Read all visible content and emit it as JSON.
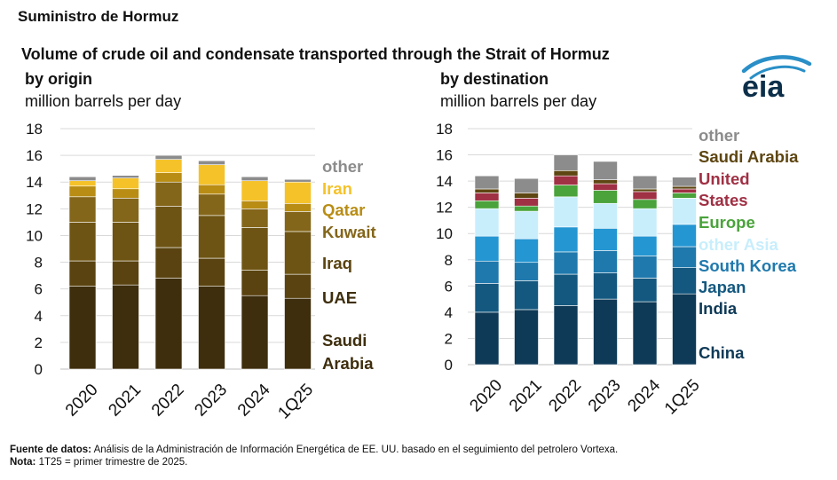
{
  "header": {
    "brand": "Suministro de Hormuz",
    "title": "Volume of crude oil and condensate transported through the Strait of Hormuz"
  },
  "logo": {
    "text": "eia"
  },
  "colors": {
    "origin": {
      "Saudi Arabia": "#3e2e0d",
      "UAE": "#5a4310",
      "Iraq": "#6e5414",
      "Kuwait": "#84661a",
      "Qatar": "#b98d14",
      "Iran": "#f5c22a",
      "other": "#8c8c8c"
    },
    "destination": {
      "China": "#0f3a57",
      "India": "#14587f",
      "Japan": "#1f79ad",
      "South Korea": "#2496d2",
      "other Asia": "#c8eefc",
      "Europe": "#4aa33b",
      "United States": "#a03044",
      "Saudi Arabia": "#5e4612",
      "other": "#8c8c8c"
    }
  },
  "chart_data": [
    {
      "type": "bar",
      "stacked": true,
      "title": "by origin",
      "subtitle": "million barrels per day",
      "categories": [
        "2020",
        "2021",
        "2022",
        "2023",
        "2024",
        "1Q25"
      ],
      "ylim": [
        0,
        18
      ],
      "yticks": [
        0,
        2,
        4,
        6,
        8,
        10,
        12,
        14,
        16,
        18
      ],
      "grid": true,
      "series": [
        {
          "name": "Saudi Arabia",
          "label": "Saudi\nArabia",
          "values": [
            6.2,
            6.3,
            6.8,
            6.2,
            5.5,
            5.3
          ]
        },
        {
          "name": "UAE",
          "label": "UAE",
          "values": [
            1.9,
            1.8,
            2.3,
            2.1,
            1.9,
            1.8
          ]
        },
        {
          "name": "Iraq",
          "label": "Iraq",
          "values": [
            2.9,
            2.9,
            3.1,
            3.2,
            3.2,
            3.2
          ]
        },
        {
          "name": "Kuwait",
          "label": "Kuwait",
          "values": [
            1.9,
            1.8,
            1.8,
            1.6,
            1.4,
            1.5
          ]
        },
        {
          "name": "Qatar",
          "label": "Qatar",
          "values": [
            0.8,
            0.7,
            0.7,
            0.7,
            0.6,
            0.6
          ]
        },
        {
          "name": "Iran",
          "label": "Iran",
          "values": [
            0.4,
            0.8,
            1.0,
            1.5,
            1.5,
            1.6
          ]
        },
        {
          "name": "other",
          "label": "other",
          "values": [
            0.3,
            0.2,
            0.3,
            0.3,
            0.3,
            0.2
          ]
        }
      ]
    },
    {
      "type": "bar",
      "stacked": true,
      "title": "by destination",
      "subtitle": "million barrels per day",
      "categories": [
        "2020",
        "2021",
        "2022",
        "2023",
        "2024",
        "1Q25"
      ],
      "ylim": [
        0,
        18
      ],
      "yticks": [
        0,
        2,
        4,
        6,
        8,
        10,
        12,
        14,
        16,
        18
      ],
      "grid": true,
      "series": [
        {
          "name": "China",
          "label": "China",
          "values": [
            4.0,
            4.2,
            4.5,
            5.0,
            4.8,
            5.4
          ]
        },
        {
          "name": "India",
          "label": "India",
          "values": [
            2.2,
            2.2,
            2.4,
            2.0,
            1.8,
            2.0
          ]
        },
        {
          "name": "Japan",
          "label": "Japan",
          "values": [
            1.7,
            1.4,
            1.7,
            1.7,
            1.7,
            1.6
          ]
        },
        {
          "name": "South Korea",
          "label": "South Korea",
          "values": [
            1.9,
            1.8,
            1.9,
            1.7,
            1.5,
            1.7
          ]
        },
        {
          "name": "other Asia",
          "label": "other Asia",
          "values": [
            2.1,
            2.1,
            2.3,
            1.9,
            2.1,
            2.0
          ]
        },
        {
          "name": "Europe",
          "label": "Europe",
          "values": [
            0.6,
            0.4,
            0.9,
            1.0,
            0.7,
            0.4
          ]
        },
        {
          "name": "United States",
          "label": "United\nStates",
          "values": [
            0.6,
            0.6,
            0.7,
            0.5,
            0.6,
            0.3
          ]
        },
        {
          "name": "Saudi Arabia",
          "label": "Saudi Arabia",
          "values": [
            0.3,
            0.4,
            0.4,
            0.3,
            0.2,
            0.2
          ]
        },
        {
          "name": "other",
          "label": "other",
          "values": [
            1.0,
            1.1,
            1.2,
            1.4,
            1.0,
            0.7
          ]
        }
      ]
    }
  ],
  "footer": {
    "source_label": "Fuente de datos:",
    "source_text": "Análisis de la Administración de Información Energética de EE. UU. basado en el seguimiento del petrolero Vortexa.",
    "note_label": "Nota:",
    "note_text": "1T25 = primer trimestre de 2025."
  }
}
